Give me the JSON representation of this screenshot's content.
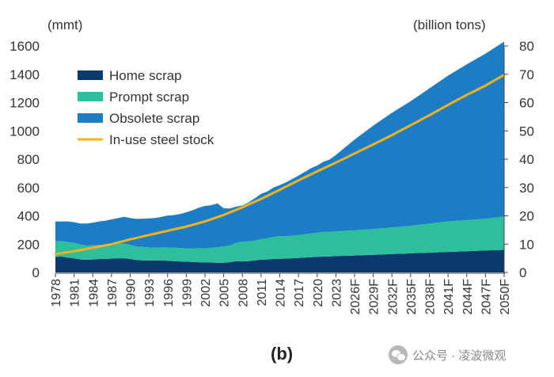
{
  "chart_data": {
    "type": "area",
    "panel_label": "(b)",
    "left_axis_unit": "(mmt)",
    "right_axis_unit": "(billion tons)",
    "ylim_left": [
      0,
      1600
    ],
    "ylim_right": [
      0,
      80
    ],
    "yticks_left": [
      "0",
      "200",
      "400",
      "600",
      "800",
      "1000",
      "1200",
      "1400",
      "1600"
    ],
    "yticks_right": [
      "0",
      "10",
      "20",
      "30",
      "40",
      "50",
      "60",
      "70",
      "80"
    ],
    "x_tick_labels": [
      "1978",
      "1981",
      "1984",
      "1987",
      "1990",
      "1993",
      "1996",
      "1999",
      "2002",
      "2005",
      "2008",
      "2011",
      "2014",
      "2017",
      "2020",
      "2023",
      "2026F",
      "2029F",
      "2032F",
      "2035F",
      "2038F",
      "2041F",
      "2044F",
      "2047F",
      "2050F"
    ],
    "xlim": [
      1978,
      2050
    ],
    "legend_position": "top-left",
    "series": [
      {
        "name": "Home scrap",
        "axis": "left",
        "kind": "stacked-area",
        "color": "#0a3a6b",
        "points": [
          [
            1978,
            110
          ],
          [
            1979,
            112
          ],
          [
            1980,
            105
          ],
          [
            1981,
            100
          ],
          [
            1982,
            92
          ],
          [
            1983,
            90
          ],
          [
            1984,
            92
          ],
          [
            1985,
            95
          ],
          [
            1986,
            95
          ],
          [
            1987,
            98
          ],
          [
            1988,
            100
          ],
          [
            1989,
            100
          ],
          [
            1990,
            95
          ],
          [
            1991,
            88
          ],
          [
            1992,
            85
          ],
          [
            1993,
            85
          ],
          [
            1994,
            85
          ],
          [
            1995,
            85
          ],
          [
            1996,
            82
          ],
          [
            1997,
            80
          ],
          [
            1998,
            78
          ],
          [
            1999,
            76
          ],
          [
            2000,
            74
          ],
          [
            2001,
            72
          ],
          [
            2002,
            70
          ],
          [
            2003,
            70
          ],
          [
            2004,
            68
          ],
          [
            2005,
            68
          ],
          [
            2006,
            72
          ],
          [
            2007,
            80
          ],
          [
            2008,
            78
          ],
          [
            2009,
            80
          ],
          [
            2010,
            85
          ],
          [
            2011,
            90
          ],
          [
            2012,
            92
          ],
          [
            2013,
            95
          ],
          [
            2014,
            97
          ],
          [
            2015,
            98
          ],
          [
            2016,
            100
          ],
          [
            2017,
            102
          ],
          [
            2018,
            105
          ],
          [
            2019,
            108
          ],
          [
            2020,
            110
          ],
          [
            2021,
            112
          ],
          [
            2022,
            113
          ],
          [
            2023,
            115
          ],
          [
            2026,
            120
          ],
          [
            2029,
            125
          ],
          [
            2032,
            130
          ],
          [
            2035,
            135
          ],
          [
            2038,
            140
          ],
          [
            2041,
            145
          ],
          [
            2044,
            150
          ],
          [
            2047,
            155
          ],
          [
            2050,
            160
          ]
        ]
      },
      {
        "name": "Prompt scrap",
        "axis": "left",
        "kind": "stacked-area",
        "color": "#2dbf9c",
        "points": [
          [
            1978,
            110
          ],
          [
            1979,
            110
          ],
          [
            1980,
            110
          ],
          [
            1981,
            110
          ],
          [
            1982,
            105
          ],
          [
            1983,
            100
          ],
          [
            1984,
            100
          ],
          [
            1985,
            100
          ],
          [
            1986,
            100
          ],
          [
            1987,
            102
          ],
          [
            1988,
            103
          ],
          [
            1989,
            103
          ],
          [
            1990,
            100
          ],
          [
            1991,
            95
          ],
          [
            1992,
            95
          ],
          [
            1993,
            92
          ],
          [
            1994,
            90
          ],
          [
            1995,
            92
          ],
          [
            1996,
            95
          ],
          [
            1997,
            95
          ],
          [
            1998,
            95
          ],
          [
            1999,
            94
          ],
          [
            2000,
            95
          ],
          [
            2001,
            100
          ],
          [
            2002,
            100
          ],
          [
            2003,
            105
          ],
          [
            2004,
            110
          ],
          [
            2005,
            115
          ],
          [
            2006,
            120
          ],
          [
            2007,
            130
          ],
          [
            2008,
            140
          ],
          [
            2009,
            140
          ],
          [
            2010,
            140
          ],
          [
            2011,
            145
          ],
          [
            2012,
            150
          ],
          [
            2013,
            155
          ],
          [
            2014,
            160
          ],
          [
            2015,
            158
          ],
          [
            2016,
            160
          ],
          [
            2017,
            162
          ],
          [
            2018,
            165
          ],
          [
            2019,
            168
          ],
          [
            2020,
            170
          ],
          [
            2021,
            175
          ],
          [
            2022,
            175
          ],
          [
            2023,
            175
          ],
          [
            2026,
            178
          ],
          [
            2029,
            182
          ],
          [
            2032,
            188
          ],
          [
            2035,
            195
          ],
          [
            2038,
            205
          ],
          [
            2041,
            215
          ],
          [
            2044,
            220
          ],
          [
            2047,
            225
          ],
          [
            2050,
            235
          ]
        ]
      },
      {
        "name": "Obsolete scrap",
        "axis": "left",
        "kind": "stacked-area",
        "color": "#1c7dc4",
        "points": [
          [
            1978,
            140
          ],
          [
            1979,
            138
          ],
          [
            1980,
            145
          ],
          [
            1981,
            145
          ],
          [
            1982,
            148
          ],
          [
            1983,
            155
          ],
          [
            1984,
            160
          ],
          [
            1985,
            165
          ],
          [
            1986,
            170
          ],
          [
            1987,
            175
          ],
          [
            1988,
            180
          ],
          [
            1989,
            190
          ],
          [
            1990,
            190
          ],
          [
            1991,
            195
          ],
          [
            1992,
            200
          ],
          [
            1993,
            205
          ],
          [
            1994,
            210
          ],
          [
            1995,
            215
          ],
          [
            1996,
            225
          ],
          [
            1997,
            230
          ],
          [
            1998,
            240
          ],
          [
            1999,
            255
          ],
          [
            2000,
            270
          ],
          [
            2001,
            285
          ],
          [
            2002,
            300
          ],
          [
            2003,
            300
          ],
          [
            2004,
            310
          ],
          [
            2005,
            270
          ],
          [
            2006,
            260
          ],
          [
            2007,
            255
          ],
          [
            2008,
            255
          ],
          [
            2009,
            275
          ],
          [
            2010,
            300
          ],
          [
            2011,
            320
          ],
          [
            2012,
            330
          ],
          [
            2013,
            350
          ],
          [
            2014,
            360
          ],
          [
            2015,
            380
          ],
          [
            2016,
            400
          ],
          [
            2017,
            420
          ],
          [
            2018,
            440
          ],
          [
            2019,
            460
          ],
          [
            2020,
            475
          ],
          [
            2021,
            495
          ],
          [
            2022,
            510
          ],
          [
            2023,
            540
          ],
          [
            2026,
            640
          ],
          [
            2029,
            730
          ],
          [
            2032,
            810
          ],
          [
            2035,
            880
          ],
          [
            2038,
            955
          ],
          [
            2041,
            1030
          ],
          [
            2044,
            1100
          ],
          [
            2047,
            1165
          ],
          [
            2050,
            1235
          ]
        ]
      },
      {
        "name": "In-use steel stock",
        "axis": "right",
        "kind": "line",
        "color": "#f3b21b",
        "points": [
          [
            1978,
            6.5
          ],
          [
            1981,
            7.5
          ],
          [
            1984,
            8.7
          ],
          [
            1987,
            10.0
          ],
          [
            1990,
            11.7
          ],
          [
            1993,
            13.2
          ],
          [
            1996,
            14.7
          ],
          [
            1999,
            16.2
          ],
          [
            2002,
            18.0
          ],
          [
            2005,
            20.3
          ],
          [
            2008,
            23.0
          ],
          [
            2011,
            26.0
          ],
          [
            2014,
            29.2
          ],
          [
            2017,
            32.5
          ],
          [
            2020,
            35.7
          ],
          [
            2023,
            38.8
          ],
          [
            2026,
            42.0
          ],
          [
            2029,
            45.2
          ],
          [
            2032,
            48.5
          ],
          [
            2035,
            52.0
          ],
          [
            2038,
            55.5
          ],
          [
            2041,
            59.2
          ],
          [
            2044,
            62.7
          ],
          [
            2047,
            66.0
          ],
          [
            2050,
            69.8
          ]
        ]
      }
    ]
  },
  "watermark": {
    "text": "公众号 · 凌波微观"
  }
}
